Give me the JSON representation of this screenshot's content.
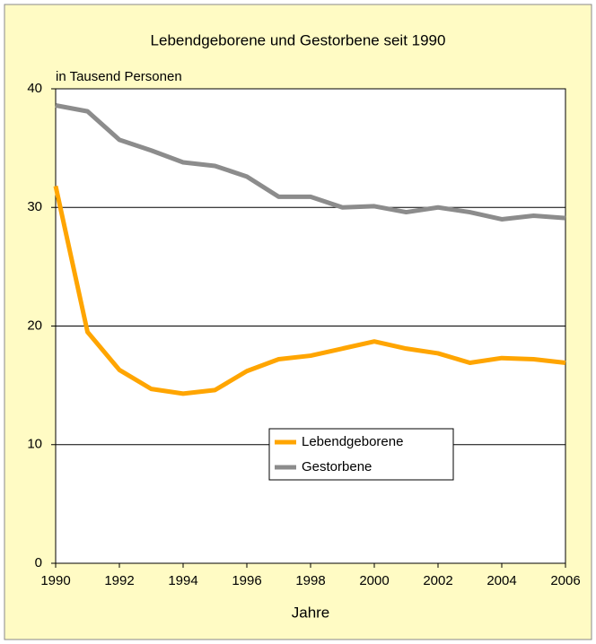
{
  "chart_data": {
    "type": "line",
    "title": "Lebendgeborene und Gestorbene seit 1990",
    "subtitle": "in Tausend Personen",
    "x_label": "Jahre",
    "x": [
      1990,
      1991,
      1992,
      1993,
      1994,
      1995,
      1996,
      1997,
      1998,
      1999,
      2000,
      2001,
      2002,
      2003,
      2004,
      2005,
      2006
    ],
    "series": [
      {
        "name": "Lebendgeborene",
        "color": "#ffa500",
        "values": [
          31.8,
          19.5,
          16.3,
          14.7,
          14.3,
          14.6,
          16.2,
          17.2,
          17.5,
          18.1,
          18.7,
          18.1,
          17.7,
          16.9,
          17.3,
          17.2,
          16.9
        ]
      },
      {
        "name": "Gestorbene",
        "color": "#8c8c8c",
        "values": [
          38.6,
          38.1,
          35.7,
          34.8,
          33.8,
          33.5,
          32.6,
          30.9,
          30.9,
          30.0,
          30.1,
          29.6,
          30.0,
          29.6,
          29.0,
          29.3,
          29.1
        ]
      }
    ],
    "xlim": [
      1990,
      2006
    ],
    "xticks": [
      1990,
      1992,
      1994,
      1996,
      1998,
      2000,
      2002,
      2004,
      2006
    ],
    "ylim": [
      0,
      40
    ],
    "yticks": [
      0,
      10,
      20,
      30,
      40
    ],
    "grid": true
  }
}
